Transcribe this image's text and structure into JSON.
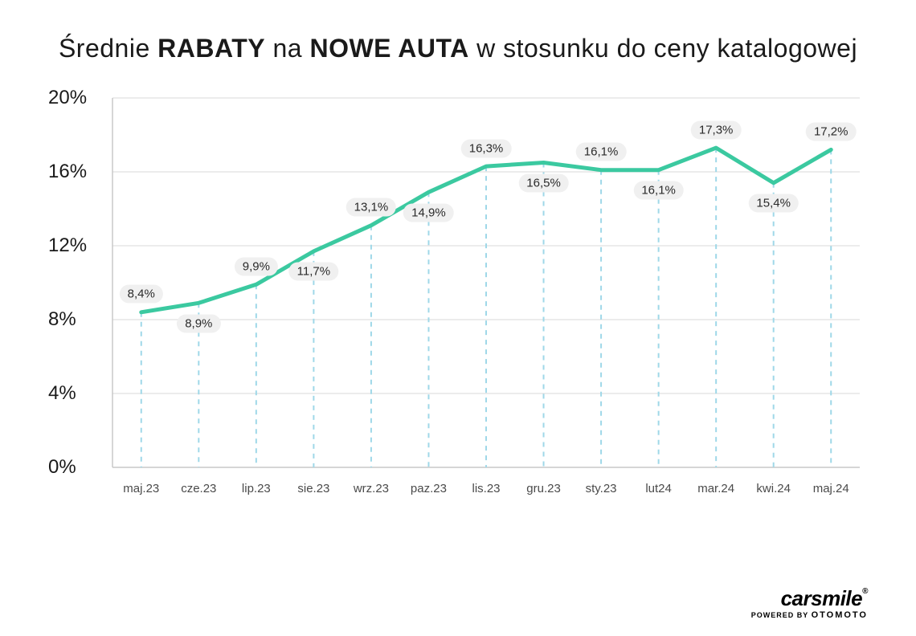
{
  "title": {
    "prefix": "Średnie ",
    "bold1": "RABATY",
    "mid": " na ",
    "bold2": "NOWE AUTA",
    "suffix": " w stosunku do ceny katalogowej"
  },
  "chart": {
    "type": "line",
    "line_color": "#3bc9a0",
    "line_width": 5,
    "grid_color": "#d8d8d8",
    "dash_color": "#9fd8e8",
    "axis_color": "#c8c8c8",
    "background_color": "#ffffff",
    "label_bg": "#f0f0f0",
    "label_text_color": "#2a2a2a",
    "text_color": "#1a1a1a",
    "y_axis": {
      "min": 0,
      "max": 20,
      "step": 4,
      "ticks": [
        "0%",
        "4%",
        "8%",
        "12%",
        "16%",
        "20%"
      ],
      "fontsize": 24
    },
    "x_axis": {
      "labels": [
        "maj.23",
        "cze.23",
        "lip.23",
        "sie.23",
        "wrz.23",
        "paz.23",
        "lis.23",
        "gru.23",
        "sty.23",
        "lut24",
        "mar.24",
        "kwi.24",
        "maj.24"
      ],
      "fontsize": 15
    },
    "data": {
      "values": [
        8.4,
        8.9,
        9.9,
        11.7,
        13.1,
        14.9,
        16.3,
        16.5,
        16.1,
        16.1,
        17.3,
        15.4,
        17.2
      ],
      "labels": [
        "8,4%",
        "8,9%",
        "9,9%",
        "11,7%",
        "13,1%",
        "14,9%",
        "16,3%",
        "16,5%",
        "16,1%",
        "16,1%",
        "17,3%",
        "15,4%",
        "17,2%"
      ],
      "label_pos": [
        "above",
        "below",
        "above",
        "below",
        "above",
        "below",
        "above",
        "below",
        "above",
        "below",
        "above",
        "below",
        "above"
      ],
      "label_fontsize": 15
    }
  },
  "logo": {
    "main": "carsmile",
    "reg": "®",
    "powered": "POWERED BY",
    "partner": "OTOMOTO"
  }
}
